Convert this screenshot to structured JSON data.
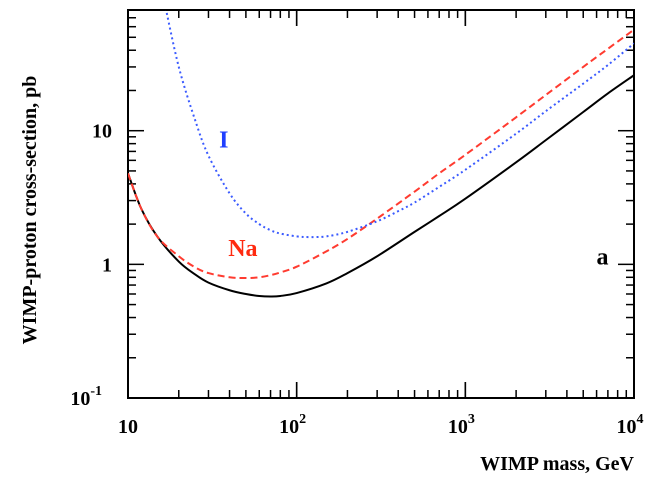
{
  "chart_data": {
    "type": "line",
    "title": "",
    "xlabel": "WIMP mass, GeV",
    "ylabel": "WIMP-proton cross-section, pb",
    "xscale": "log",
    "yscale": "log",
    "xlim": [
      10,
      10000
    ],
    "ylim": [
      0.1,
      80
    ],
    "grid": false,
    "legend": "none",
    "x_ticks": [
      {
        "value": 10,
        "label": "10",
        "sup": ""
      },
      {
        "value": 100,
        "label": "10",
        "sup": "2"
      },
      {
        "value": 1000,
        "label": "10",
        "sup": "3"
      },
      {
        "value": 10000,
        "label": "10",
        "sup": "4"
      }
    ],
    "y_ticks": [
      {
        "value": 0.1,
        "label": "10",
        "sup": "-1"
      },
      {
        "value": 1,
        "label": "1",
        "sup": ""
      },
      {
        "value": 10,
        "label": "10",
        "sup": ""
      }
    ],
    "series": [
      {
        "key": "combined",
        "color": "#000000",
        "style": "solid",
        "x": [
          10,
          12,
          15,
          20,
          25,
          30,
          40,
          50,
          60,
          70,
          80,
          100,
          150,
          200,
          300,
          500,
          700,
          1000,
          2000,
          3000,
          5000,
          7000,
          10000
        ],
        "y": [
          4.8,
          2.6,
          1.6,
          1.05,
          0.84,
          0.73,
          0.64,
          0.6,
          0.58,
          0.575,
          0.58,
          0.61,
          0.72,
          0.86,
          1.15,
          1.75,
          2.3,
          3.1,
          5.8,
          8.5,
          13.8,
          19.0,
          26.0
        ]
      },
      {
        "key": "na",
        "color": "#ff3b30",
        "style": "dashed",
        "x": [
          10,
          12,
          15,
          20,
          25,
          30,
          40,
          50,
          60,
          70,
          80,
          100,
          150,
          200,
          300,
          500,
          700,
          1000,
          2000,
          3000,
          5000,
          7000,
          10000
        ],
        "y": [
          4.8,
          2.6,
          1.6,
          1.15,
          0.95,
          0.86,
          0.8,
          0.79,
          0.8,
          0.83,
          0.87,
          0.96,
          1.25,
          1.55,
          2.2,
          3.5,
          4.8,
          6.6,
          12.6,
          18.5,
          30.0,
          41.0,
          57.0
        ]
      },
      {
        "key": "i",
        "color": "#3b5bff",
        "style": "dotted",
        "x": [
          16.5,
          20,
          25,
          30,
          40,
          50,
          60,
          70,
          80,
          100,
          120,
          150,
          200,
          300,
          400,
          500,
          700,
          1000,
          2000,
          3000,
          5000,
          7000,
          10000
        ],
        "y": [
          90,
          30,
          12,
          6.5,
          3.4,
          2.4,
          2.0,
          1.8,
          1.7,
          1.62,
          1.6,
          1.62,
          1.75,
          2.1,
          2.5,
          2.9,
          3.8,
          5.1,
          9.5,
          14.0,
          22.5,
          31.0,
          45.0
        ]
      }
    ],
    "annotations": [
      {
        "key": "i",
        "text": "I",
        "color": "#1f3fff",
        "x": 37,
        "y": 7.5
      },
      {
        "key": "na",
        "text": "Na",
        "color": "#ff2a10",
        "x": 48,
        "y": 1.15
      },
      {
        "key": "a",
        "text": "a",
        "color": "#000000",
        "x": 6500,
        "y": 1.0
      }
    ]
  }
}
